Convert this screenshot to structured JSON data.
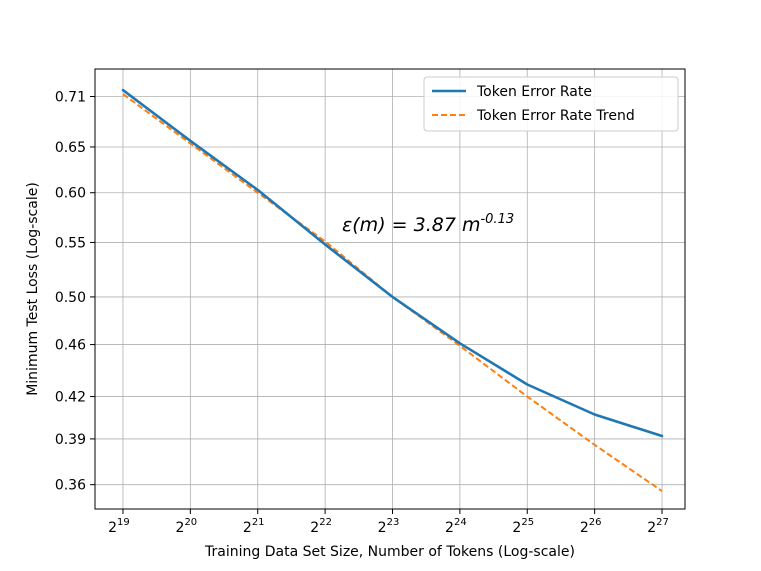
{
  "chart_data": {
    "type": "line",
    "xscale": "log2",
    "yscale": "log",
    "x": [
      524288,
      1048576,
      2097152,
      4194304,
      8388608,
      16777216,
      33554432,
      67108864,
      134217728
    ],
    "x_tick_labels": [
      "2",
      "2",
      "2",
      "2",
      "2",
      "2",
      "2",
      "2",
      "2"
    ],
    "x_tick_exponents": [
      "19",
      "20",
      "21",
      "22",
      "23",
      "24",
      "25",
      "26",
      "27"
    ],
    "y_ticks": [
      0.36,
      0.39,
      0.42,
      0.46,
      0.5,
      0.55,
      0.6,
      0.65,
      0.71
    ],
    "y_tick_labels": [
      "0.36",
      "0.39",
      "0.42",
      "0.46",
      "0.50",
      "0.55",
      "0.60",
      "0.65",
      "0.71"
    ],
    "xlim": [
      393216,
      170000000
    ],
    "ylim": [
      0.345,
      0.745
    ],
    "xlabel": "Training Data Set Size, Number of Tokens (Log-scale)",
    "ylabel": "Minimum Test Loss (Log-scale)",
    "grid": true,
    "legend_position": "top-right",
    "series": [
      {
        "name": "Token Error Rate",
        "style": "solid",
        "color": "#1f77b4",
        "values": [
          0.718,
          0.657,
          0.603,
          0.548,
          0.5,
          0.461,
          0.429,
          0.407,
          0.392
        ]
      },
      {
        "name": "Token Error Rate Trend",
        "style": "dashed",
        "color": "#ff7f0e",
        "values": [
          0.713,
          0.654,
          0.6,
          0.551,
          0.5,
          0.459,
          0.42,
          0.386,
          0.356
        ]
      }
    ],
    "annotation": {
      "text": "ε(m) = 3.87 m",
      "superscript": "-0.13"
    }
  }
}
